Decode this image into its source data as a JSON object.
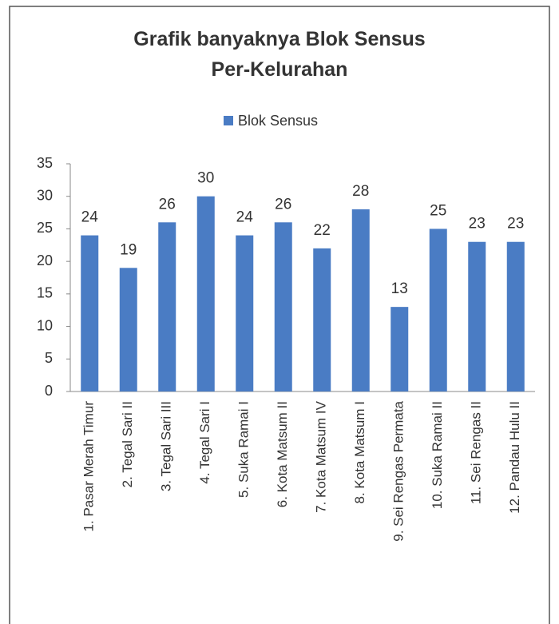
{
  "chart_data": {
    "type": "bar",
    "title": "Grafik banyaknya Blok Sensus Per-Kelurahan",
    "categories": [
      "1. Pasar Merah Timur",
      "2. Tegal Sari II",
      "3. Tegal Sari III",
      "4. Tegal Sari I",
      "5. Suka Ramai I",
      "6. Kota Matsum II",
      "7. Kota Matsum IV",
      "8. Kota Matsum I",
      "9. Sei Rengas Permata",
      "10. Suka Ramai II",
      "11. Sei Rengas II",
      "12. Pandau Hulu II"
    ],
    "series": [
      {
        "name": "Blok Sensus",
        "color": "#4a7cc4",
        "values": [
          24,
          19,
          26,
          30,
          24,
          26,
          22,
          28,
          13,
          25,
          23,
          23
        ]
      }
    ],
    "ylim": [
      0,
      35
    ],
    "yticks": [
      0,
      5,
      10,
      15,
      20,
      25,
      30,
      35
    ],
    "grid": false,
    "legend": "top"
  }
}
